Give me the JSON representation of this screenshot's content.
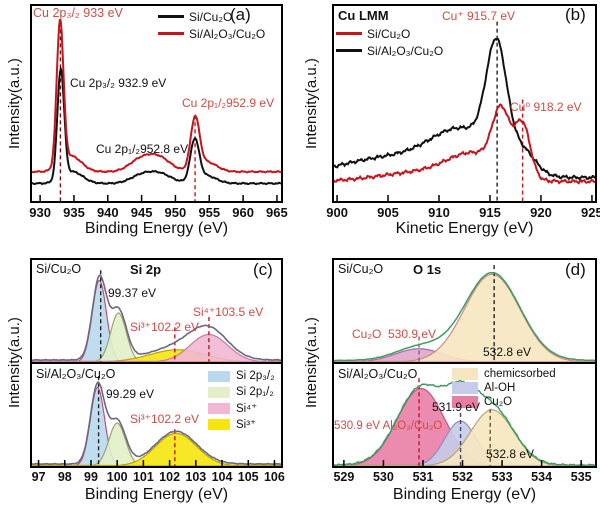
{
  "figure": {
    "ylabel": "Intensity(a.u.)",
    "panels": {
      "a": {
        "letter": "(a)",
        "xlabel": "Binding Energy (eV)",
        "legend": [
          {
            "label": "Si/Cu₂O",
            "color": "#111111"
          },
          {
            "label": "Si/Al₂O₃/Cu₂O",
            "color": "#c4161c"
          }
        ],
        "annotations": {
          "peak_933": "Cu 2p₃/₂ 933 eV",
          "peak_9329": "Cu 2p₃/₂ 932.9 eV",
          "peak_9529": "Cu 2p₁/₂952.9 eV",
          "peak_9528": "Cu 2p₁/₂952.8 eV"
        }
      },
      "b": {
        "letter": "(b)",
        "title": "Cu LMM",
        "xlabel": "Kinetic Energy (eV)",
        "legend": [
          {
            "label": "Si/Cu₂O",
            "color": "#c4161c"
          },
          {
            "label": "Si/Al₂O₃/Cu₂O",
            "color": "#111111"
          }
        ],
        "annotations": {
          "cu_plus": "Cu⁺ 915.7 eV",
          "cu_zero": "Cu⁰ 918.2 eV"
        }
      },
      "c": {
        "letter": "(c)",
        "title": "Si 2p",
        "xlabel": "Binding Energy (eV)",
        "top": {
          "sample": "Si/Cu₂O",
          "annotations": {
            "p1": "99.37 eV",
            "p2": "Si³⁺102.2 eV",
            "p3": "Si⁴⁺103.5 eV"
          }
        },
        "bottom": {
          "sample": "Si/Al₂O₃/Cu₂O",
          "annotations": {
            "p1": "99.29 eV",
            "p2": "Si³⁺102.2 eV"
          }
        },
        "legend": [
          {
            "label": "Si 2p₃/₂",
            "color": "#b9d9ee"
          },
          {
            "label": "Si 2p₁/₂",
            "color": "#e2efc8"
          },
          {
            "label": "Si⁴⁺",
            "color": "#f2b7d3"
          },
          {
            "label": "Si³⁺",
            "color": "#f6e50e"
          }
        ]
      },
      "d": {
        "letter": "(d)",
        "title": "O 1s",
        "xlabel": "Binding Energy (eV)",
        "top": {
          "sample": "Si/Cu₂O",
          "annotations": {
            "cu2o": "Cu₂O  530.9 eV",
            "p2": "532.8 eV"
          }
        },
        "bottom": {
          "sample": "Si/Al₂O₃/Cu₂O",
          "annotations": {
            "p1": "530.9 eV Al₂O₃/Cu₂O",
            "p2": "531.9 eV",
            "p3": "532.8 eV"
          }
        },
        "legend": [
          {
            "label": "chemicsorbed",
            "color": "#f6e6c0"
          },
          {
            "label": "Al-OH",
            "color": "#c5cbe9"
          },
          {
            "label": "Cu₂O",
            "color": "#e87ea6"
          }
        ]
      }
    }
  },
  "colors": {
    "black_curve": "#111111",
    "red_curve": "#c4161c",
    "red_text": "#d24a42",
    "blue_fill": "#b9d9ee",
    "green_fill": "#e2efc8",
    "pink_fill": "#f2b7d3",
    "yellow_fill": "#f6e50e",
    "tan_fill": "#f6e6c0",
    "lavender_fill": "#c5cbe9",
    "rose_fill": "#e87ea6",
    "envelope_gray": "#6e6880",
    "envelope_green": "#3f9b62"
  },
  "chart_data": {
    "a": {
      "type": "line",
      "region": "Cu 2p",
      "xlabel": "Binding Energy (eV)",
      "ylabel": "Intensity(a.u.)",
      "xlim": [
        928.8,
        965.6
      ],
      "xticks": [
        930,
        935,
        940,
        945,
        950,
        955,
        960,
        965
      ],
      "labeled_peaks": [
        {
          "assignment": "Cu 2p3/2",
          "energy_eV": 933.0,
          "series": "Si/Al₂O₃/Cu₂O"
        },
        {
          "assignment": "Cu 2p3/2",
          "energy_eV": 932.9,
          "series": "Si/Cu₂O"
        },
        {
          "assignment": "Cu 2p1/2",
          "energy_eV": 952.9,
          "series": "Si/Al₂O₃/Cu₂O"
        },
        {
          "assignment": "Cu 2p1/2",
          "energy_eV": 952.8,
          "series": "Si/Cu₂O"
        }
      ],
      "series": [
        {
          "name": "Si/Cu₂O",
          "color": "#111111",
          "width": 2,
          "base": 0.09,
          "noise": 0.004,
          "peaks": [
            {
              "c": 933.05,
              "s": 0.5,
              "h": 0.56
            },
            {
              "c": 934.8,
              "s": 1.5,
              "h": 0.06
            },
            {
              "c": 944.8,
              "s": 1.6,
              "h": 0.035
            },
            {
              "c": 947.6,
              "s": 1.8,
              "h": 0.05
            },
            {
              "c": 952.85,
              "s": 0.65,
              "h": 0.21
            },
            {
              "c": 954.5,
              "s": 1.5,
              "h": 0.04
            }
          ]
        },
        {
          "name": "Si/Al₂O₃/Cu₂O",
          "color": "#c4161c",
          "width": 2,
          "base": 0.15,
          "noise": 0.004,
          "peaks": [
            {
              "c": 932.95,
              "s": 0.5,
              "h": 0.74
            },
            {
              "c": 934.6,
              "s": 1.5,
              "h": 0.08
            },
            {
              "c": 944.6,
              "s": 1.6,
              "h": 0.05
            },
            {
              "c": 947.4,
              "s": 1.8,
              "h": 0.075
            },
            {
              "c": 952.9,
              "s": 0.65,
              "h": 0.26
            },
            {
              "c": 954.6,
              "s": 1.5,
              "h": 0.05
            }
          ]
        }
      ],
      "vlines": [
        {
          "x": 933.0,
          "color": "#7a0f12",
          "top": 0.88
        },
        {
          "x": 952.9,
          "color": "#c4161c",
          "top": 0.44
        }
      ]
    },
    "b": {
      "type": "line",
      "region": "Cu LMM",
      "xlabel": "Kinetic Energy (eV)",
      "ylabel": "Intensity(a.u.)",
      "xlim": [
        899.7,
        925.3
      ],
      "xticks": [
        900,
        905,
        910,
        915,
        920,
        925
      ],
      "labeled_peaks": [
        {
          "assignment": "Cu⁺",
          "energy_eV": 915.7,
          "series": "Si/Al₂O₃/Cu₂O"
        },
        {
          "assignment": "Cu⁰",
          "energy_eV": 918.2,
          "series": "Si/Cu₂O"
        }
      ],
      "series": [
        {
          "name": "Si/Al₂O₃/Cu₂O",
          "color": "#111111",
          "width": 2,
          "base": 0.12,
          "noise": 0.01,
          "peaks": [
            {
              "c": 905,
              "s": 5,
              "h": 0.1
            },
            {
              "c": 912.5,
              "s": 3.2,
              "h": 0.22
            },
            {
              "c": 915.65,
              "s": 1.0,
              "h": 0.56
            },
            {
              "c": 918.3,
              "s": 1.2,
              "h": 0.1
            }
          ]
        },
        {
          "name": "Si/Cu₂O",
          "color": "#c4161c",
          "width": 2,
          "base": 0.1,
          "noise": 0.01,
          "peaks": [
            {
              "c": 908,
              "s": 4,
              "h": 0.045
            },
            {
              "c": 913.5,
              "s": 2.6,
              "h": 0.13
            },
            {
              "c": 916.1,
              "s": 0.85,
              "h": 0.3
            },
            {
              "c": 918.2,
              "s": 0.75,
              "h": 0.27
            }
          ]
        }
      ],
      "vlines": [
        {
          "x": 915.7,
          "color": "#222222",
          "top": 0.92
        },
        {
          "x": 918.2,
          "color": "#c4161c",
          "top": 0.52
        }
      ]
    },
    "c": {
      "type": "area",
      "region": "Si 2p",
      "xlabel": "Binding Energy (eV)",
      "ylabel": "Intensity(a.u.)",
      "xlim": [
        96.75,
        106.25
      ],
      "xticks": [
        97,
        98,
        99,
        100,
        101,
        102,
        103,
        104,
        105,
        106
      ],
      "subpanels": [
        {
          "sample": "Si/Cu₂O",
          "xlim": [
            96.75,
            106.25
          ],
          "labeled_peaks": [
            {
              "assignment": "Si 2p3/2",
              "energy_eV": 99.37
            },
            {
              "assignment": "Si³⁺",
              "energy_eV": 102.2
            },
            {
              "assignment": "Si⁴⁺",
              "energy_eV": 103.5
            }
          ],
          "series": [
            {
              "name": "Si 2p₃/₂",
              "fill": "#b9d9ee",
              "stroke": "#c0507a",
              "peaks": [
                {
                  "c": 99.32,
                  "s": 0.27,
                  "h": 0.8
                }
              ]
            },
            {
              "name": "Si 2p₁/₂",
              "fill": "#e2efc8",
              "stroke": "#9aa36a",
              "peaks": [
                {
                  "c": 100.05,
                  "s": 0.3,
                  "h": 0.48
                }
              ]
            },
            {
              "name": "Si³⁺",
              "fill": "#f6e50e",
              "stroke": "#b8a100",
              "peaks": [
                {
                  "c": 102.3,
                  "s": 1.05,
                  "h": 0.12
                }
              ]
            },
            {
              "name": "Si⁴⁺",
              "fill": "#f2b7d3",
              "stroke": "#c77ba3",
              "peaks": [
                {
                  "c": 103.5,
                  "s": 0.72,
                  "h": 0.27
                }
              ]
            },
            {
              "name": "envelope",
              "color": "#6e6880",
              "width": 1.6,
              "base": 0.02,
              "sum": true,
              "noise": 0.004
            }
          ],
          "vlines": [
            {
              "x": 99.37,
              "color": "#222222",
              "top": 0.9
            },
            {
              "x": 102.2,
              "color": "#c4161c",
              "top": 0.34
            },
            {
              "x": 103.5,
              "color": "#c4161c",
              "top": 0.44
            }
          ]
        },
        {
          "sample": "Si/Al₂O₃/Cu₂O",
          "xlim": [
            96.75,
            106.25
          ],
          "xticks": [
            97,
            98,
            99,
            100,
            101,
            102,
            103,
            104,
            105,
            106
          ],
          "labeled_peaks": [
            {
              "assignment": "Si 2p3/2",
              "energy_eV": 99.29
            },
            {
              "assignment": "Si³⁺",
              "energy_eV": 102.2
            }
          ],
          "series": [
            {
              "name": "Si 2p₃/₂",
              "fill": "#b9d9ee",
              "stroke": "#c0507a",
              "peaks": [
                {
                  "c": 99.25,
                  "s": 0.27,
                  "h": 0.77
                }
              ]
            },
            {
              "name": "Si 2p₁/₂",
              "fill": "#e2efc8",
              "stroke": "#9aa36a",
              "peaks": [
                {
                  "c": 100.0,
                  "s": 0.32,
                  "h": 0.42
                }
              ]
            },
            {
              "name": "Si³⁺",
              "fill": "#f6e50e",
              "stroke": "#b8a100",
              "peaks": [
                {
                  "c": 102.25,
                  "s": 0.78,
                  "h": 0.32
                }
              ]
            },
            {
              "name": "envelope",
              "color": "#6e6880",
              "width": 1.6,
              "base": 0.02,
              "sum": true,
              "noise": 0.004
            }
          ],
          "vlines": [
            {
              "x": 99.29,
              "color": "#222222",
              "top": 0.88
            },
            {
              "x": 102.2,
              "color": "#c4161c",
              "top": 0.36
            }
          ]
        }
      ]
    },
    "d": {
      "type": "area",
      "region": "O 1s",
      "xlabel": "Binding Energy (eV)",
      "ylabel": "Intensity(a.u.)",
      "xlim": [
        528.75,
        535.35
      ],
      "xticks": [
        529,
        530,
        531,
        532,
        533,
        534,
        535
      ],
      "subpanels": [
        {
          "sample": "Si/Cu₂O",
          "xlim": [
            528.75,
            535.35
          ],
          "labeled_peaks": [
            {
              "assignment": "Cu₂O",
              "energy_eV": 530.9
            },
            {
              "assignment": "chemicsorbed",
              "energy_eV": 532.8
            }
          ],
          "series": [
            {
              "name": "Cu₂O",
              "fill": "#dfa6cb",
              "stroke": "#a569a8",
              "peaks": [
                {
                  "c": 530.9,
                  "s": 0.6,
                  "h": 0.13
                }
              ]
            },
            {
              "name": "chemicsorbed",
              "fill": "#f6e6c0",
              "stroke": "#cf8a80",
              "peaks": [
                {
                  "c": 532.75,
                  "s": 0.7,
                  "h": 0.86
                }
              ]
            },
            {
              "name": "envelope",
              "color": "#3f9b62",
              "width": 1.5,
              "base": 0.015,
              "sum": true,
              "noise": 0.002
            }
          ],
          "vlines": [
            {
              "x": 530.9,
              "color": "#8a5a8a",
              "top": 0.25
            },
            {
              "x": 532.8,
              "color": "#222222",
              "top": 0.95
            }
          ]
        },
        {
          "sample": "Si/Al₂O₃/Cu₂O",
          "xlim": [
            528.75,
            535.35
          ],
          "xticks": [
            529,
            530,
            531,
            532,
            533,
            534,
            535
          ],
          "labeled_peaks": [
            {
              "assignment": "Cu₂O (Al₂O₃/Cu₂O)",
              "energy_eV": 530.9
            },
            {
              "assignment": "Al-OH",
              "energy_eV": 531.9
            },
            {
              "assignment": "chemicsorbed",
              "energy_eV": 532.8
            }
          ],
          "series": [
            {
              "name": "Cu₂O",
              "fill": "#e87ea6",
              "stroke": "#c2557e",
              "peaks": [
                {
                  "c": 530.95,
                  "s": 0.6,
                  "h": 0.76
                }
              ]
            },
            {
              "name": "Al-OH",
              "fill": "#c5cbe9",
              "stroke": "#8890c4",
              "peaks": [
                {
                  "c": 531.95,
                  "s": 0.4,
                  "h": 0.44
                }
              ]
            },
            {
              "name": "chemicsorbed",
              "fill": "#f6e6c0",
              "stroke": "#b5a66a",
              "peaks": [
                {
                  "c": 532.75,
                  "s": 0.55,
                  "h": 0.55
                }
              ]
            },
            {
              "name": "envelope",
              "color": "#3f9b62",
              "width": 1.5,
              "base": 0.01,
              "sum": true,
              "noise": 0.009
            }
          ],
          "vlines": [
            {
              "x": 530.9,
              "color": "#c4161c",
              "top": 0.86
            },
            {
              "x": 531.95,
              "color": "#444466",
              "top": 0.52
            },
            {
              "x": 532.7,
              "color": "#6b5d33",
              "top": 0.56
            }
          ]
        }
      ]
    }
  }
}
